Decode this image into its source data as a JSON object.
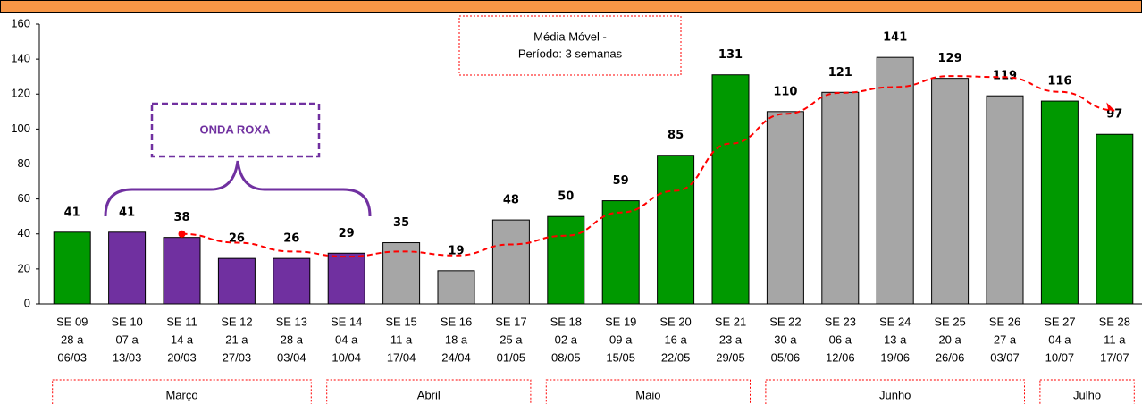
{
  "chart_data": {
    "type": "bar",
    "categories": [
      [
        "SE 09",
        "28 a",
        "06/03"
      ],
      [
        "SE 10",
        "07 a",
        "13/03"
      ],
      [
        "SE 11",
        "14 a",
        "20/03"
      ],
      [
        "SE 12",
        "21 a",
        "27/03"
      ],
      [
        "SE 13",
        "28 a",
        "03/04"
      ],
      [
        "SE 14",
        "04 a",
        "10/04"
      ],
      [
        "SE 15",
        "11 a",
        "17/04"
      ],
      [
        "SE 16",
        "18 a",
        "24/04"
      ],
      [
        "SE 17",
        "25 a",
        "01/05"
      ],
      [
        "SE 18",
        "02 a",
        "08/05"
      ],
      [
        "SE 19",
        "09 a",
        "15/05"
      ],
      [
        "SE 20",
        "16 a",
        "22/05"
      ],
      [
        "SE 21",
        "23 a",
        "29/05"
      ],
      [
        "SE 22",
        "30 a",
        "05/06"
      ],
      [
        "SE 23",
        "06 a",
        "12/06"
      ],
      [
        "SE 24",
        "13 a",
        "19/06"
      ],
      [
        "SE 25",
        "20 a",
        "26/06"
      ],
      [
        "SE 26",
        "27 a",
        "03/07"
      ],
      [
        "SE 27",
        "04 a",
        "10/07"
      ],
      [
        "SE 28",
        "11 a",
        "17/07"
      ]
    ],
    "values": [
      41,
      41,
      38,
      26,
      26,
      29,
      35,
      19,
      48,
      50,
      59,
      85,
      131,
      110,
      121,
      141,
      129,
      119,
      116,
      97
    ],
    "colors": [
      "#009900",
      "#7030a0",
      "#7030a0",
      "#7030a0",
      "#7030a0",
      "#7030a0",
      "#a6a6a6",
      "#a6a6a6",
      "#a6a6a6",
      "#009900",
      "#009900",
      "#009900",
      "#009900",
      "#a6a6a6",
      "#a6a6a6",
      "#a6a6a6",
      "#a6a6a6",
      "#a6a6a6",
      "#009900",
      "#009900"
    ],
    "moving_average": {
      "color": "#ff0000",
      "label": [
        "Média Móvel -",
        "Período: 3 semanas"
      ],
      "values": [
        null,
        null,
        40,
        35,
        30,
        27,
        30,
        27.7,
        34,
        39,
        52.3,
        64.7,
        91.7,
        108.7,
        120.7,
        124,
        130.3,
        129.7,
        121.3,
        110.7
      ]
    },
    "annotation": "ONDA ROXA",
    "months": [
      "Março",
      "Abril",
      "Maio",
      "Junho",
      "Julho"
    ],
    "ylim": [
      0,
      160
    ],
    "yticks": [
      0,
      20,
      40,
      60,
      80,
      100,
      120,
      140,
      160
    ]
  }
}
